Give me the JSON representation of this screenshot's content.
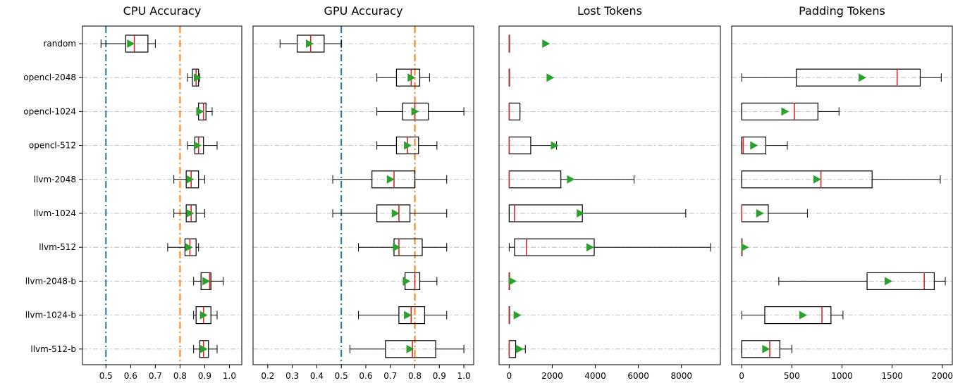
{
  "rows": [
    "random",
    "opencl-2048",
    "opencl-1024",
    "opencl-512",
    "llvm-2048",
    "llvm-1024",
    "llvm-512",
    "llvm-2048-b",
    "llvm-1024-b",
    "llvm-512-b"
  ],
  "colors": {
    "median": "#d62728",
    "mean": "#2ca02c",
    "ref_blue": "#1f77b4",
    "ref_orange": "#ff7f0e",
    "grid": "#b0b0b0",
    "box": "#000000"
  },
  "chart_data": [
    {
      "type": "box",
      "title": "CPU Accuracy",
      "xlim": [
        0.405,
        1.05
      ],
      "xticks": [
        0.5,
        0.6,
        0.7,
        0.8,
        0.9,
        1.0
      ],
      "xtick_labels": [
        "0.5",
        "0.6",
        "0.7",
        "0.8",
        "0.9",
        "1.0"
      ],
      "grid": "horizontal",
      "ref_lines": [
        {
          "x": 0.5,
          "color": "#1f77b4"
        },
        {
          "x": 0.8,
          "color": "#ff7f0e"
        }
      ],
      "boxes": [
        {
          "wl": 0.48,
          "q1": 0.58,
          "med": 0.615,
          "q3": 0.67,
          "wh": 0.7,
          "mean": 0.6
        },
        {
          "wl": 0.83,
          "q1": 0.85,
          "med": 0.865,
          "q3": 0.875,
          "wh": 0.88,
          "mean": 0.87
        },
        {
          "wl": 0.87,
          "q1": 0.875,
          "med": 0.895,
          "q3": 0.905,
          "wh": 0.93,
          "mean": 0.88
        },
        {
          "wl": 0.83,
          "q1": 0.86,
          "med": 0.875,
          "q3": 0.895,
          "wh": 0.95,
          "mean": 0.87
        },
        {
          "wl": 0.775,
          "q1": 0.825,
          "med": 0.845,
          "q3": 0.875,
          "wh": 0.9,
          "mean": 0.84
        },
        {
          "wl": 0.775,
          "q1": 0.825,
          "med": 0.845,
          "q3": 0.865,
          "wh": 0.9,
          "mean": 0.84
        },
        {
          "wl": 0.75,
          "q1": 0.82,
          "med": 0.84,
          "q3": 0.865,
          "wh": 0.875,
          "mean": 0.835
        },
        {
          "wl": 0.855,
          "q1": 0.885,
          "med": 0.92,
          "q3": 0.925,
          "wh": 0.975,
          "mean": 0.905
        },
        {
          "wl": 0.855,
          "q1": 0.865,
          "med": 0.895,
          "q3": 0.925,
          "wh": 0.95,
          "mean": 0.895
        },
        {
          "wl": 0.855,
          "q1": 0.88,
          "med": 0.895,
          "q3": 0.915,
          "wh": 0.95,
          "mean": 0.895
        }
      ]
    },
    {
      "type": "box",
      "title": "GPU Accuracy",
      "xlim": [
        0.14,
        1.04
      ],
      "xticks": [
        0.2,
        0.3,
        0.4,
        0.5,
        0.6,
        0.7,
        0.8,
        0.9,
        1.0
      ],
      "xtick_labels": [
        "0.2",
        "0.3",
        "0.4",
        "0.5",
        "0.6",
        "0.7",
        "0.8",
        "0.9",
        "1.0"
      ],
      "grid": "horizontal",
      "ref_lines": [
        {
          "x": 0.5,
          "color": "#1f77b4"
        },
        {
          "x": 0.8,
          "color": "#ff7f0e"
        }
      ],
      "boxes": [
        {
          "wl": 0.25,
          "q1": 0.32,
          "med": 0.375,
          "q3": 0.43,
          "wh": 0.5,
          "mean": 0.37
        },
        {
          "wl": 0.645,
          "q1": 0.725,
          "med": 0.785,
          "q3": 0.82,
          "wh": 0.86,
          "mean": 0.785
        },
        {
          "wl": 0.645,
          "q1": 0.75,
          "med": 0.8,
          "q3": 0.855,
          "wh": 1.0,
          "mean": 0.8
        },
        {
          "wl": 0.645,
          "q1": 0.725,
          "med": 0.77,
          "q3": 0.815,
          "wh": 0.89,
          "mean": 0.77
        },
        {
          "wl": 0.465,
          "q1": 0.625,
          "med": 0.715,
          "q3": 0.8,
          "wh": 0.93,
          "mean": 0.7
        },
        {
          "wl": 0.465,
          "q1": 0.645,
          "med": 0.735,
          "q3": 0.78,
          "wh": 0.93,
          "mean": 0.72
        },
        {
          "wl": 0.57,
          "q1": 0.715,
          "med": 0.735,
          "q3": 0.83,
          "wh": 0.93,
          "mean": 0.725
        },
        {
          "wl": 0.755,
          "q1": 0.76,
          "med": 0.8,
          "q3": 0.82,
          "wh": 0.89,
          "mean": 0.765
        },
        {
          "wl": 0.57,
          "q1": 0.735,
          "med": 0.785,
          "q3": 0.84,
          "wh": 0.93,
          "mean": 0.77
        },
        {
          "wl": 0.535,
          "q1": 0.68,
          "med": 0.79,
          "q3": 0.885,
          "wh": 1.0,
          "mean": 0.78
        }
      ]
    },
    {
      "type": "box",
      "title": "Lost Tokens",
      "xlim": [
        -470,
        9810
      ],
      "xticks": [
        0,
        2000,
        4000,
        6000,
        8000
      ],
      "xtick_labels": [
        "0",
        "2000",
        "4000",
        "6000",
        "8000"
      ],
      "grid": "horizontal",
      "ref_lines": [],
      "boxes": [
        {
          "wl": 0,
          "q1": 0,
          "med": 0,
          "q3": 0,
          "wh": 0,
          "mean": 1700
        },
        {
          "wl": 0,
          "q1": 0,
          "med": 0,
          "q3": 0,
          "wh": 0,
          "mean": 1900
        },
        {
          "wl": 0,
          "q1": 0,
          "med": 0,
          "q3": 500,
          "wh": 500,
          "mean": null
        },
        {
          "wl": 0,
          "q1": 0,
          "med": 0,
          "q3": 1000,
          "wh": 2200,
          "mean": 2100
        },
        {
          "wl": 0,
          "q1": 0,
          "med": 0,
          "q3": 2400,
          "wh": 5800,
          "mean": 2850
        },
        {
          "wl": 0,
          "q1": 0,
          "med": 250,
          "q3": 3400,
          "wh": 8200,
          "mean": 3300
        },
        {
          "wl": 0,
          "q1": 250,
          "med": 800,
          "q3": 3950,
          "wh": 9350,
          "mean": 3750
        },
        {
          "wl": 0,
          "q1": 0,
          "med": 0,
          "q3": 0,
          "wh": 0,
          "mean": 150
        },
        {
          "wl": 0,
          "q1": 0,
          "med": 0,
          "q3": 0,
          "wh": 0,
          "mean": 370
        },
        {
          "wl": 0,
          "q1": 0,
          "med": 0,
          "q3": 300,
          "wh": 750,
          "mean": 480
        }
      ]
    },
    {
      "type": "box",
      "title": "Padding Tokens",
      "xlim": [
        -100,
        2100
      ],
      "xticks": [
        0,
        500,
        1000,
        1500,
        2000
      ],
      "xtick_labels": [
        "0",
        "500",
        "1000",
        "1500",
        "2000"
      ],
      "grid": "horizontal",
      "ref_lines": [],
      "boxes": [
        {
          "wl": null,
          "q1": null,
          "med": null,
          "q3": null,
          "wh": null,
          "mean": null
        },
        {
          "wl": 0,
          "q1": 545,
          "med": 1550,
          "q3": 1780,
          "wh": 1990,
          "mean": 1200
        },
        {
          "wl": 0,
          "q1": 0,
          "med": 525,
          "q3": 760,
          "wh": 970,
          "mean": 430
        },
        {
          "wl": 0,
          "q1": 0,
          "med": 15,
          "q3": 240,
          "wh": 455,
          "mean": 120
        },
        {
          "wl": 0,
          "q1": 0,
          "med": 790,
          "q3": 1300,
          "wh": 1980,
          "mean": 750
        },
        {
          "wl": 0,
          "q1": 0,
          "med": 0,
          "q3": 265,
          "wh": 655,
          "mean": 180
        },
        {
          "wl": 0,
          "q1": 0,
          "med": 0,
          "q3": 0,
          "wh": 0,
          "mean": 30
        },
        {
          "wl": 370,
          "q1": 1250,
          "med": 1820,
          "q3": 1920,
          "wh": 2030,
          "mean": 1460
        },
        {
          "wl": 0,
          "q1": 230,
          "med": 800,
          "q3": 890,
          "wh": 1010,
          "mean": 610
        },
        {
          "wl": 0,
          "q1": 0,
          "med": 280,
          "q3": 380,
          "wh": 500,
          "mean": 240
        }
      ]
    }
  ]
}
